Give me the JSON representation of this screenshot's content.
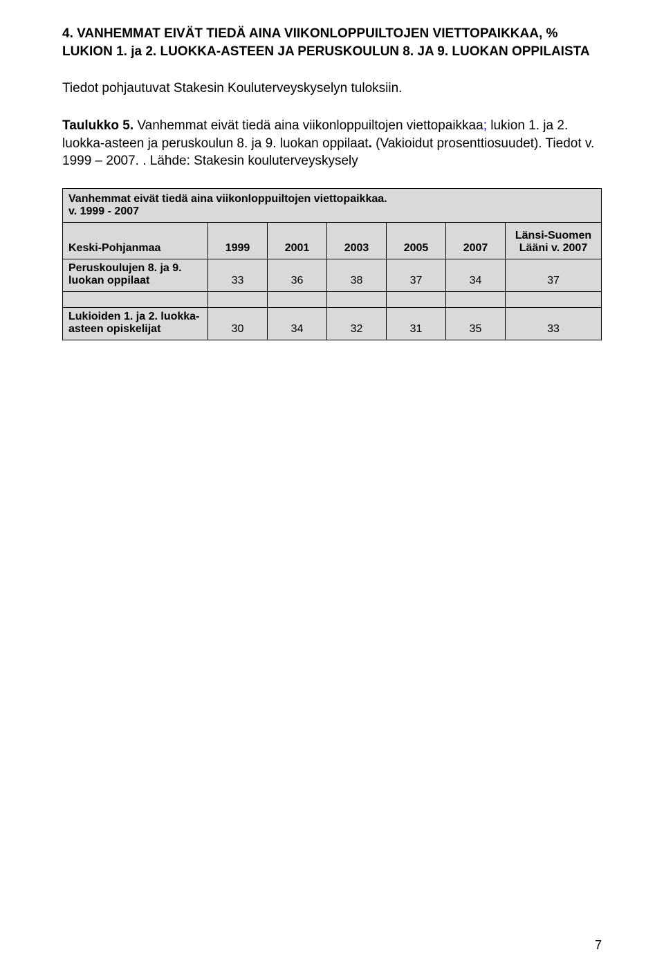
{
  "heading": "4. VANHEMMAT EIVÄT TIEDÄ AINA VIIKONLOPPUILTOJEN VIETTOPAIKKAA, % LUKION 1. ja 2. LUOKKA-ASTEEN JA PERUSKOULUN 8. JA 9. LUOKAN OPPILAISTA",
  "intro": "Tiedot pohjautuvat Stakesin Kouluterveyskyselyn tuloksiin.",
  "caption": {
    "prefix_bold": "Taulukko 5.",
    "part1": " Vanhemmat eivät tiedä aina viikonloppuiltojen viettopaikkaa",
    "blue": ";",
    "part2": " lukion 1. ja 2. luokka-asteen ja peruskoulun 8. ja 9. luokan oppilaat",
    "bold2": ".",
    "part3": " (Vakioidut prosenttiosuudet). Tiedot v. 1999 – 2007. . Lähde: Stakesin kouluterveyskysely"
  },
  "table": {
    "type": "table",
    "title_line1": "Vanhemmat  eivät tiedä aina viikonloppuiltojen viettopaikkaa.",
    "title_line2": " v. 1999 - 2007",
    "background_color": "#d9d9d9",
    "border_color": "#000000",
    "font_size": 16,
    "columns": [
      "Keski-Pohjanmaa",
      "1999",
      "2001",
      "2003",
      "2005",
      "2007",
      "Länsi-Suomen Lääni v. 2007"
    ],
    "rows": [
      {
        "label": "Peruskoulujen 8. ja 9. luokan oppilaat",
        "values": [
          "33",
          "36",
          "38",
          "37",
          "34",
          "37"
        ]
      },
      {
        "label": "Lukioiden 1. ja 2. luokka-asteen opiskelijat",
        "values": [
          "30",
          "34",
          "32",
          "31",
          "35",
          "33"
        ]
      }
    ]
  },
  "page_number": "7"
}
